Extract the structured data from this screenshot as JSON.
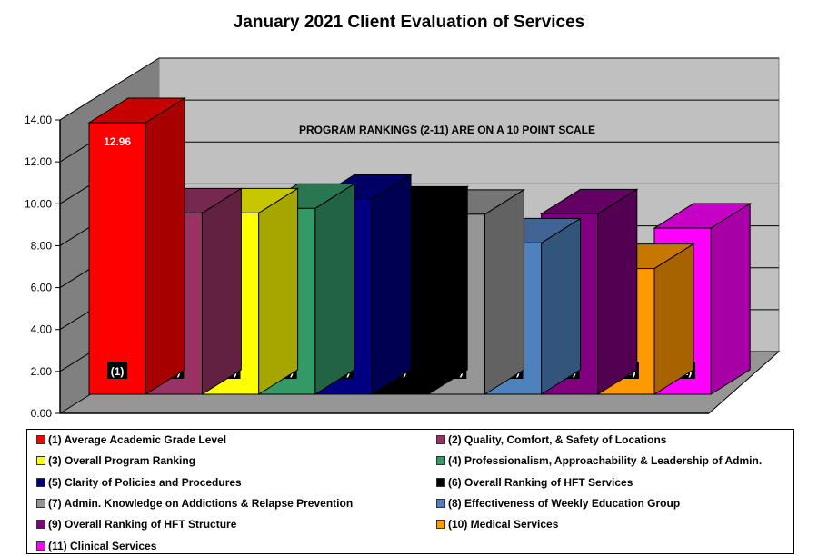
{
  "chart_data": {
    "type": "bar",
    "title": "January 2021 Client Evaluation of Services",
    "annotation": "PROGRAM RANKINGS (2-11) ARE ON A 10 POINT SCALE",
    "xlabel": "",
    "ylabel": "",
    "ylim": [
      0,
      14
    ],
    "y_ticks": [
      "0.00",
      "2.00",
      "4.00",
      "6.00",
      "8.00",
      "10.00",
      "12.00",
      "14.00"
    ],
    "grid": true,
    "legend_position": "bottom",
    "categories": [
      "(1)",
      "(2)",
      "(3)",
      "(4)",
      "(5)",
      "(6)",
      "(7)",
      "(8)",
      "(9)",
      "(10)",
      "(11)"
    ],
    "values": [
      12.96,
      8.65,
      8.65,
      8.87,
      9.3,
      8.74,
      8.59,
      7.22,
      8.61,
      6.0,
      7.93
    ],
    "value_labels": [
      "12.96",
      "8.65",
      "8.65",
      "8.87",
      "9.30",
      "8.74",
      "8.59",
      "7.22",
      "8.61",
      "6.00",
      "7.93"
    ],
    "colors": [
      "#ff0000",
      "#993366",
      "#ffff00",
      "#339966",
      "#000080",
      "#000000",
      "#969696",
      "#4f81bd",
      "#800080",
      "#ff9900",
      "#ff00ff"
    ],
    "legend": [
      "(1) Average Academic Grade Level",
      "(2) Quality, Comfort, & Safety of Locations",
      "(3) Overall Program Ranking",
      "(4) Professionalism, Approachability  & Leadership of Admin.",
      "(5) Clarity of Policies and Procedures",
      "(6) Overall Ranking of HFT Services",
      "(7) Admin. Knowledge on Addictions & Relapse Prevention",
      "(8) Effectiveness of Weekly Education Group",
      "(9) Overall Ranking of HFT Structure",
      "(10) Medical Services",
      "(11) Clinical Services"
    ]
  }
}
